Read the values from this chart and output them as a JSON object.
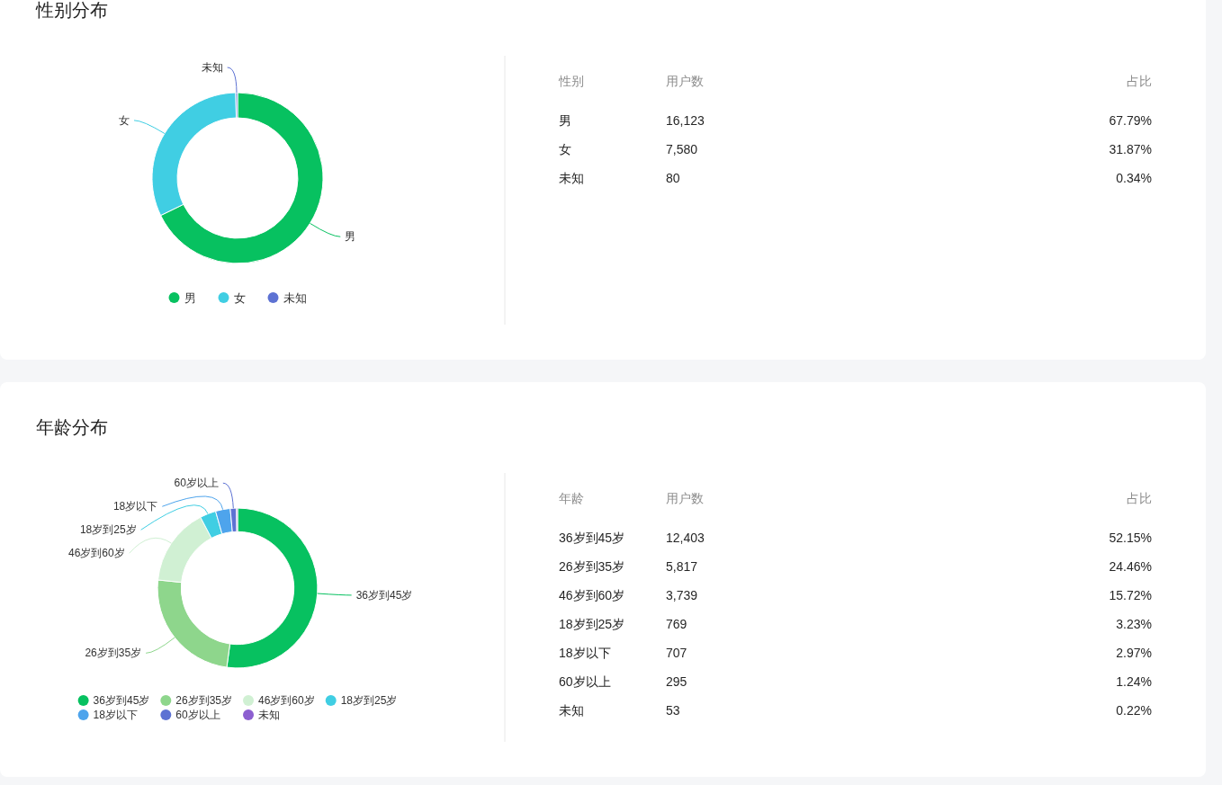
{
  "chart_data": [
    {
      "type": "donut",
      "title": "性别分布",
      "categories": [
        "男",
        "女",
        "未知"
      ],
      "values": [
        67.79,
        31.87,
        0.34
      ],
      "colors": [
        "#07c160",
        "#40cee3",
        "#5d72d3"
      ],
      "legend": "bottom"
    },
    {
      "type": "other",
      "xlabel": "性别",
      "ylabel": "用户数",
      "y2label": "占比",
      "annotations": [
        "男",
        "16,123",
        "67.79%",
        "女",
        "7,580",
        "31.87%",
        "未知",
        "80",
        "0.34%"
      ]
    },
    {
      "type": "donut",
      "title": "年龄分布",
      "categories": [
        "36岁到45岁",
        "26岁到35岁",
        "46岁到60岁",
        "18岁到25岁",
        "18岁以下",
        "60岁以上",
        "未知"
      ],
      "values": [
        52.15,
        24.46,
        15.72,
        3.23,
        2.97,
        1.24,
        0.22
      ],
      "colors": [
        "#07c160",
        "#8ed68c",
        "#d0f0d3",
        "#40cee3",
        "#4ea4ec",
        "#5d72d3",
        "#8c5fd0"
      ],
      "legend": "bottom"
    },
    {
      "type": "other",
      "xlabel": "年龄",
      "ylabel": "用户数",
      "y2label": "占比",
      "annotations": [
        "36岁到45岁",
        "12,403",
        "52.15%",
        "26岁到35岁",
        "5,817",
        "24.46%",
        "46岁到60岁",
        "3,739",
        "15.72%",
        "18岁到25岁",
        "769",
        "3.23%",
        "18岁以下",
        "707",
        "2.97%",
        "60岁以上",
        "295",
        "1.24%",
        "未知",
        "53",
        "0.22%"
      ]
    }
  ]
}
